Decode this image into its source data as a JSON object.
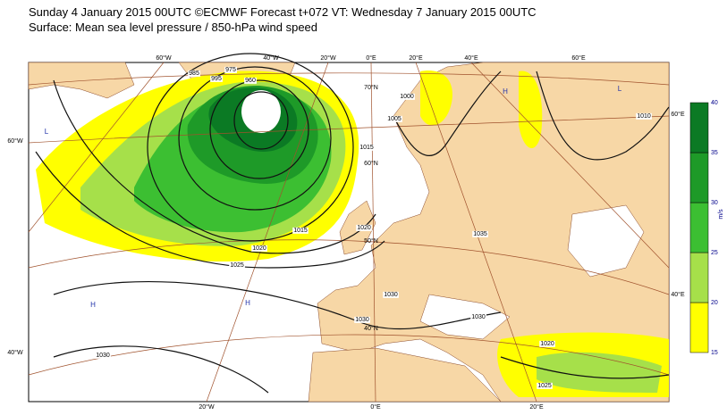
{
  "header": {
    "line1": "Sunday 4 January 2015 00UTC ©ECMWF Forecast t+072 VT: Wednesday 7 January 2015 00UTC",
    "line2": "Surface: Mean sea level pressure / 850-hPa wind speed"
  },
  "map": {
    "lon_labels_top": [
      "60°W",
      "40°W",
      "20°W",
      "0°E",
      "20°E",
      "40°E",
      "60°E"
    ],
    "lon_labels_bottom": [
      "20°W",
      "0°E",
      "20°E"
    ],
    "lat_labels": [
      "60°W",
      "40°W",
      "70°N",
      "60°N",
      "50°N",
      "40°N",
      "60°E",
      "40°E"
    ],
    "isobar_labels": [
      "1020",
      "1025",
      "1015",
      "1010",
      "1005",
      "1000",
      "995",
      "985",
      "960",
      "1030",
      "1030",
      "1025",
      "1020",
      "1030",
      "1035",
      "1020",
      "1015",
      "1030",
      "975"
    ],
    "pressure_centres": [
      "H",
      "H",
      "H",
      "L",
      "L"
    ]
  },
  "colorbar": {
    "unit": "m/s",
    "ticks": [
      15,
      20,
      25,
      30,
      35,
      40
    ],
    "colors": [
      "#ffff00",
      "#a6e04a",
      "#3cbf32",
      "#1e9a28",
      "#0b7a24"
    ]
  }
}
